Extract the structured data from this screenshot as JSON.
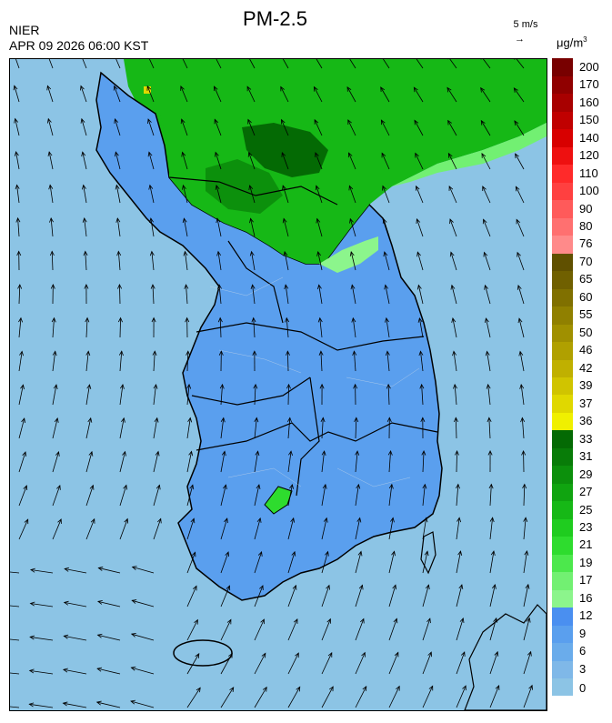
{
  "header": {
    "title": "PM-2.5",
    "organization": "NIER",
    "timestamp": "APR 09 2026 06:00 KST",
    "wind_reference": "5 m/s",
    "wind_reference_arrow": "→",
    "unit_base": "μg/m",
    "unit_exp": "3"
  },
  "legend": {
    "levels": [
      "0",
      "3",
      "6",
      "9",
      "12",
      "16",
      "17",
      "19",
      "21",
      "23",
      "25",
      "27",
      "29",
      "31",
      "33",
      "36",
      "37",
      "39",
      "42",
      "46",
      "50",
      "55",
      "60",
      "65",
      "70",
      "76",
      "80",
      "90",
      "100",
      "110",
      "120",
      "140",
      "150",
      "160",
      "170",
      "200"
    ],
    "colors": [
      "#8cc4e5",
      "#7fb8e8",
      "#6aaceb",
      "#5a9fee",
      "#4a8ff0",
      "#8cf58c",
      "#72f072",
      "#4ce84c",
      "#2edc2e",
      "#1fcc1f",
      "#16b816",
      "#10a410",
      "#0c900c",
      "#087c08",
      "#046a04",
      "#f0f000",
      "#e0d800",
      "#d0c400",
      "#c0b000",
      "#b0a000",
      "#a09000",
      "#908000",
      "#807000",
      "#706000",
      "#605000",
      "#ff8a8a",
      "#ff7070",
      "#ff5a5a",
      "#ff4040",
      "#ff2a2a",
      "#ee1010",
      "#d80000",
      "#c00000",
      "#a80000",
      "#900000",
      "#780000"
    ]
  },
  "map": {
    "ocean_color": "#8cc4e5",
    "land_color": "#5a9fee",
    "north_green_color": "#16b816",
    "north_dark_color": "#046a04",
    "coast_color": "#000000",
    "wind_direction": "southeast-to-northwest, curving westward in south"
  }
}
